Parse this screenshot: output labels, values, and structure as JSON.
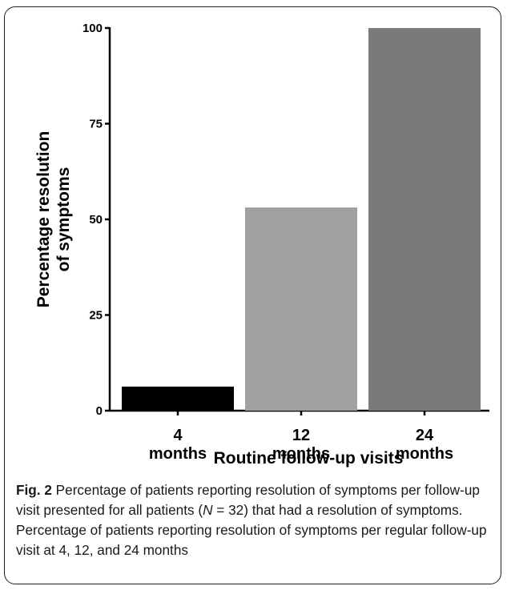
{
  "chart_data": {
    "type": "bar",
    "categories": [
      [
        "4",
        "months"
      ],
      [
        "12",
        "months"
      ],
      [
        "24",
        "months"
      ]
    ],
    "values": [
      6.3,
      53.1,
      100
    ],
    "bar_colors": [
      "#000000",
      "#a0a0a0",
      "#7a7a7a"
    ],
    "ylabel_lines": [
      "Percentage resolution",
      "of symptoms"
    ],
    "xlabel": "Routine follow-up visits",
    "ylim": [
      0,
      100
    ],
    "yticks": [
      0,
      25,
      50,
      75,
      100
    ],
    "grid": false,
    "legend": "none"
  },
  "caption": {
    "fig_label": "Fig. 2",
    "text_part1": " Percentage of patients reporting resolution of symptoms per follow-up visit presented for all patients (",
    "n_symbol": "N",
    "text_part2": " = 32) that had a resolution of symptoms. Percentage of patients reporting resolution of symptoms per regular follow-up visit at 4, 12, and 24 months"
  }
}
